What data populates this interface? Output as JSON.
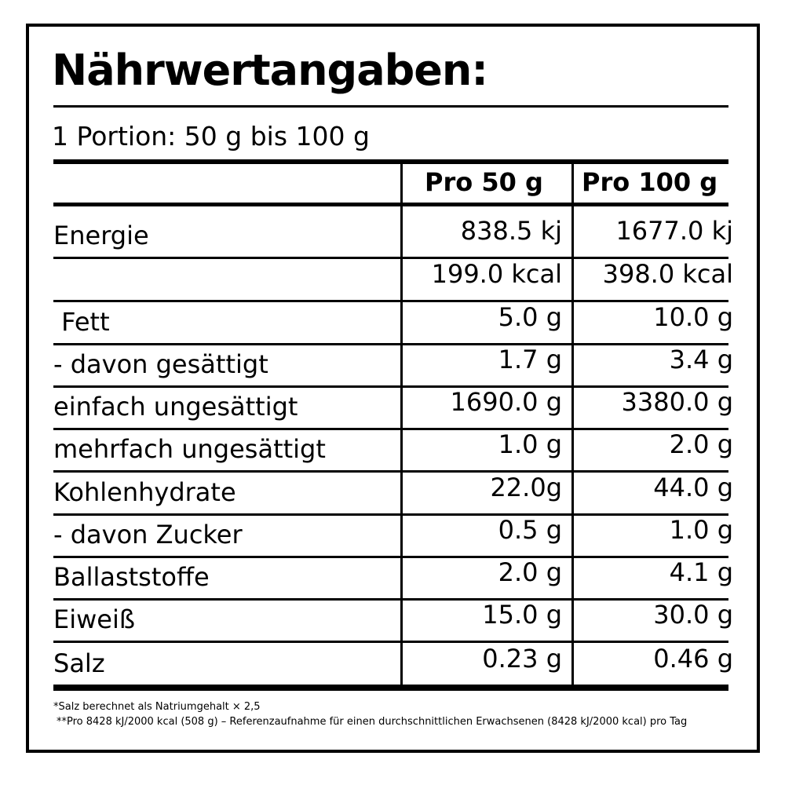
{
  "title": "Nährwertangaben:",
  "portion": "1 Portion: 50 g bis 100 g",
  "columns": [
    "Pro 50 g",
    "Pro 100 g"
  ],
  "rows": [
    {
      "label": "Energie",
      "v50": "838.5 kj",
      "v100": "1677.0 kj"
    },
    {
      "label": "",
      "v50": "199.0 kcal",
      "v100": "398.0 kcal"
    },
    {
      "label": " Fett",
      "v50": "5.0 g",
      "v100": "10.0 g"
    },
    {
      "label": "- davon gesättigt",
      "v50": "1.7 g",
      "v100": "3.4 g"
    },
    {
      "label": "einfach ungesättigt",
      "v50": "1690.0 g",
      "v100": "3380.0 g"
    },
    {
      "label": "mehrfach ungesättigt",
      "v50": "1.0 g",
      "v100": "2.0 g"
    },
    {
      "label": "Kohlenhydrate",
      "v50": "22.0g",
      "v100": "44.0 g"
    },
    {
      "label": "- davon Zucker",
      "v50": "0.5 g",
      "v100": "1.0 g"
    },
    {
      "label": "Ballaststoffe",
      "v50": "2.0 g",
      "v100": "4.1 g"
    },
    {
      "label": "Eiweiß",
      "v50": "15.0 g",
      "v100": "30.0 g"
    },
    {
      "label": "Salz",
      "v50": "0.23 g",
      "v100": "0.46 g"
    }
  ],
  "footnotes": [
    "*Salz berechnet als Natriumgehalt × 2,5",
    "**Pro 8428 kJ/2000 kcal (508 g) – Referenzaufnahme für einen durchschnittlichen Erwachsenen (8428 kJ/2000 kcal) pro Tag"
  ]
}
